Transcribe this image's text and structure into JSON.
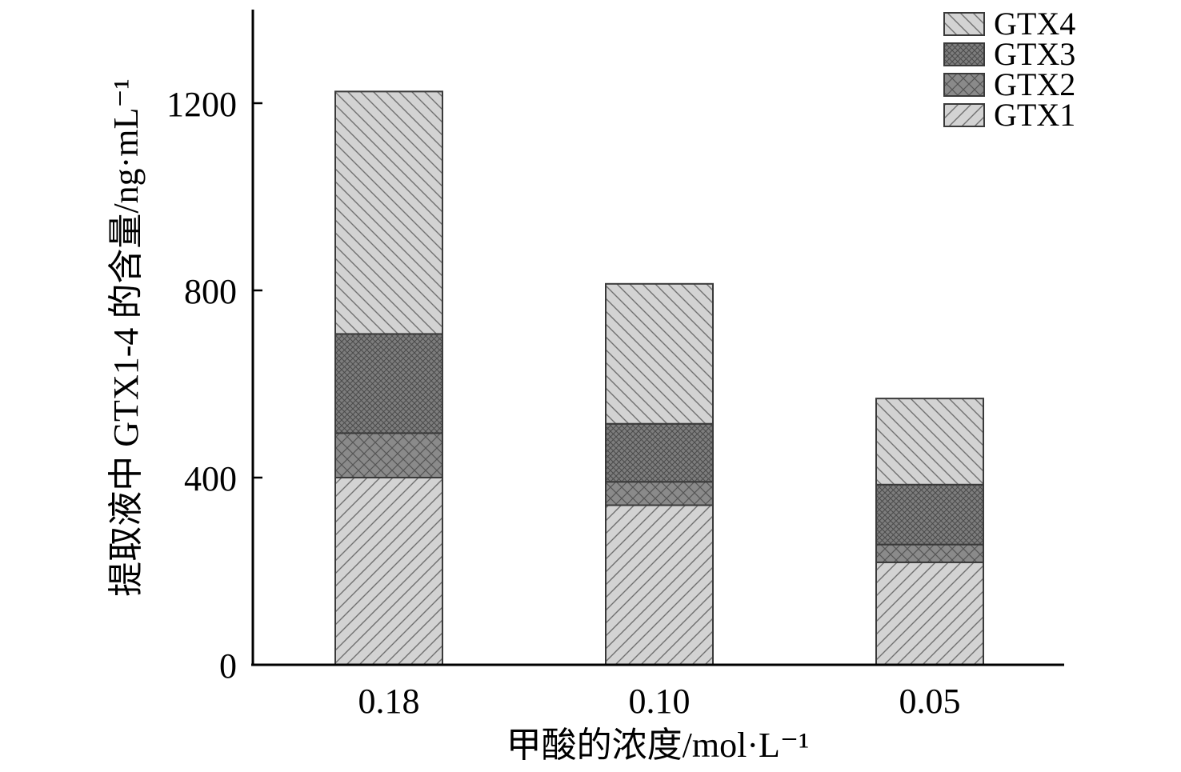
{
  "chart_data": {
    "type": "bar",
    "stacked": true,
    "categories": [
      "0.18",
      "0.10",
      "0.05"
    ],
    "series": [
      {
        "name": "GTX1",
        "values": [
          400,
          341,
          219
        ]
      },
      {
        "name": "GTX2",
        "values": [
          95,
          50,
          38
        ]
      },
      {
        "name": "GTX3",
        "values": [
          212,
          124,
          128
        ]
      },
      {
        "name": "GTX4",
        "values": [
          518,
          299,
          184
        ]
      }
    ],
    "xlabel": "甲酸的浓度/mol·L⁻¹",
    "ylabel": "提取液中 GTX1-4 的含量/ng·mL⁻¹",
    "ylim": [
      0,
      1400
    ],
    "yticks": [
      0,
      400,
      800,
      1200
    ],
    "ytick_labels": [
      "0",
      "400",
      "800",
      "1200"
    ],
    "grid": false,
    "legend": {
      "position": "top-right",
      "order": [
        "GTX4",
        "GTX3",
        "GTX2",
        "GTX1"
      ]
    },
    "styles": {
      "GTX1": {
        "fill": "#d3d3d3",
        "pattern": "forward-diagonal"
      },
      "GTX2": {
        "fill": "#8a8a8a",
        "pattern": "cross-hatch"
      },
      "GTX3": {
        "fill": "#7d7d7d",
        "pattern": "dense-cross-hatch"
      },
      "GTX4": {
        "fill": "#d3d3d3",
        "pattern": "back-diagonal"
      }
    }
  }
}
